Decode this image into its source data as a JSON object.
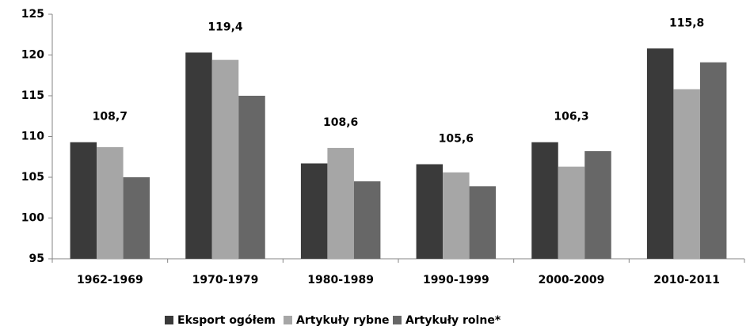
{
  "chart_data": {
    "type": "bar",
    "categories": [
      "1962-1969",
      "1970-1979",
      "1980-1989",
      "1990-1999",
      "2000-2009",
      "2010-2011"
    ],
    "series": [
      {
        "name": "Eksport ogółem",
        "color": "#3a3a3a",
        "values": [
          109.3,
          120.3,
          106.7,
          106.6,
          109.3,
          120.8
        ]
      },
      {
        "name": "Artykuły rybne",
        "color": "#a6a6a6",
        "values": [
          108.7,
          119.4,
          108.6,
          105.6,
          106.3,
          115.8
        ],
        "value_labels": [
          "108,7",
          "119,4",
          "108,6",
          "105,6",
          "106,3",
          "115,8"
        ]
      },
      {
        "name": "Artykuły rolne*",
        "color": "#676767",
        "values": [
          105.0,
          115.0,
          104.5,
          103.9,
          108.2,
          119.1
        ]
      }
    ],
    "ylim": [
      95,
      125
    ],
    "yticks": [
      95,
      100,
      105,
      110,
      115,
      120,
      125
    ],
    "grid": false,
    "legend": "bottom"
  }
}
